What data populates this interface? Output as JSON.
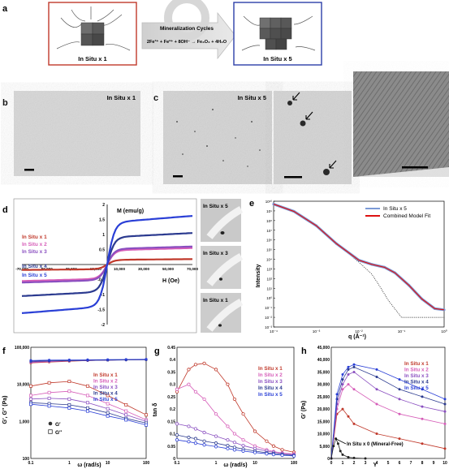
{
  "panels": {
    "a": {
      "letter": "a",
      "left_label": "In Situ x 1",
      "right_label": "In Situ x 5",
      "arrow_title": "Mineralization Cycles",
      "equation": "2Fe³⁺ + Fe²⁺ + 8OH⁻ → Fe₃O₄ + 4H₂O",
      "left_border": "#c0392b",
      "right_border": "#2c3ea8"
    },
    "b": {
      "letter": "b",
      "label": "In Situ x 1"
    },
    "c": {
      "letter": "c",
      "label": "In Situ x 5"
    },
    "d": {
      "letter": "d",
      "ylabel": "M (emu/g)",
      "xlabel": "H (Oe)",
      "insets": [
        "In Situ x 5",
        "In Situ x 3",
        "In Situ x 1"
      ]
    },
    "e": {
      "letter": "e",
      "ylabel": "Intensity",
      "xlabel": "q (Å⁻¹)"
    },
    "f": {
      "letter": "f",
      "ylabel": "G′, G″ (Pa)",
      "xlabel": "ω (rad/s)",
      "legend_g1": "G′",
      "legend_g2": "G″"
    },
    "g": {
      "letter": "g",
      "ylabel": "tan δ",
      "xlabel": "ω (rad/s)"
    },
    "h": {
      "letter": "h",
      "ylabel": "G′ (Pa)",
      "xlabel": "Y",
      "mineral_free": "In Situ x 0 (Mineral-Free)"
    }
  },
  "series_names": [
    "In Situ x 1",
    "In Situ x 2",
    "In Situ x 3",
    "In Situ x 4",
    "In Situ x 5"
  ],
  "series_colors": [
    "#c0392b",
    "#d65db8",
    "#8a4fc0",
    "#2b3a8f",
    "#2a3fd6"
  ],
  "chart_data": [
    {
      "id": "d",
      "type": "line",
      "xlabel": "H (Oe)",
      "ylabel": "M (emu/g)",
      "xlim": [
        -70000,
        70000
      ],
      "ylim": [
        -2,
        2
      ],
      "x_tick_labels": [
        "-70,000",
        "-50,000",
        "-30,000",
        "-10,000",
        "10,000",
        "30,000",
        "50,000",
        "70,000"
      ],
      "y_tick_labels": [
        "-2",
        "-1.5",
        "-1",
        "-0.5",
        "0.5",
        "1",
        "1.5",
        "2"
      ],
      "series": [
        {
          "name": "In Situ x 1",
          "ms": 0.18
        },
        {
          "name": "In Situ x 2",
          "ms": 0.55
        },
        {
          "name": "In Situ x 3",
          "ms": 0.6
        },
        {
          "name": "In Situ x 4",
          "ms": 1.05
        },
        {
          "name": "In Situ x 5",
          "ms": 1.62
        }
      ]
    },
    {
      "id": "e",
      "type": "line",
      "xlabel": "q (Å⁻¹)",
      "ylabel": "Intensity",
      "xscale": "log",
      "yscale": "log",
      "xlim": [
        0.0001,
        1
      ],
      "ylim": [
        0.001,
        10000000000
      ],
      "series": [
        {
          "name": "In Situ x 5",
          "q": [
            0.0001,
            0.0003,
            0.001,
            0.003,
            0.01,
            0.02,
            0.04,
            0.07,
            0.15,
            0.3,
            0.6,
            1
          ],
          "I": [
            5000000000,
            900000000,
            30000000,
            400000,
            8000,
            3000,
            1500,
            400,
            20,
            0.8,
            0.08,
            0.06
          ]
        },
        {
          "name": "Combined Model Fit",
          "q": [
            0.0001,
            0.0003,
            0.001,
            0.003,
            0.01,
            0.02,
            0.04,
            0.07,
            0.15,
            0.3,
            0.6,
            1
          ],
          "I": [
            5000000000,
            900000000,
            30000000,
            400000,
            8000,
            3000,
            1500,
            400,
            20,
            0.8,
            0.08,
            0.06
          ]
        },
        {
          "name": "",
          "q": [
            0.0001,
            0.0003,
            0.001,
            0.003,
            0.01,
            0.02,
            0.03,
            0.05,
            0.1,
            0.3,
            1
          ],
          "I": [
            5000000000,
            900000000,
            30000000,
            400000,
            5000,
            300,
            20,
            0.5,
            0.01,
            0.01,
            0.01
          ]
        }
      ]
    },
    {
      "id": "f",
      "type": "line",
      "xlabel": "ω (rad/s)",
      "ylabel": "G′, G″ (Pa)",
      "xscale": "log",
      "yscale": "log",
      "xlim": [
        0.1,
        100
      ],
      "ylim": [
        100,
        100000
      ],
      "y_tick_labels": [
        "100",
        "1,000",
        "10,000",
        "100,000"
      ],
      "x_tick_labels": [
        "0.1",
        "1",
        "10",
        "100"
      ],
      "x": [
        0.1,
        0.3,
        1,
        3,
        10,
        30,
        100
      ],
      "series": [
        {
          "name": "In Situ x 1",
          "Gp": [
            38000,
            40000,
            42000,
            44000,
            45000,
            46000,
            47000
          ],
          "Gpp": [
            9000,
            11000,
            12000,
            9000,
            5000,
            2800,
            1500
          ]
        },
        {
          "name": "In Situ x 2",
          "Gp": [
            39000,
            41000,
            43000,
            44000,
            45000,
            46000,
            47000
          ],
          "Gpp": [
            5000,
            6000,
            6500,
            5000,
            3000,
            1900,
            1100
          ]
        },
        {
          "name": "In Situ x 3",
          "Gp": [
            40000,
            42000,
            43000,
            44000,
            45000,
            45500,
            46000
          ],
          "Gpp": [
            4000,
            4200,
            4000,
            3200,
            2200,
            1500,
            1000
          ]
        },
        {
          "name": "In Situ x 4",
          "Gp": [
            42000,
            43000,
            44000,
            44500,
            45000,
            45500,
            46000
          ],
          "Gpp": [
            3200,
            3000,
            2800,
            2300,
            1700,
            1200,
            900
          ]
        },
        {
          "name": "In Situ x 5",
          "Gp": [
            44000,
            45000,
            45500,
            46000,
            46500,
            47000,
            47500
          ],
          "Gpp": [
            2900,
            2600,
            2300,
            1900,
            1400,
            1100,
            800
          ]
        }
      ]
    },
    {
      "id": "g",
      "type": "line",
      "xlabel": "ω (rad/s)",
      "ylabel": "tan δ",
      "xscale": "log",
      "xlim": [
        0.1,
        100
      ],
      "ylim": [
        0,
        0.45
      ],
      "y_tick_labels": [
        "0",
        "0.05",
        "0.1",
        "0.15",
        "0.2",
        "0.25",
        "0.3",
        "0.35",
        "0.4",
        "0.45"
      ],
      "x_tick_labels": [
        "0.1",
        "1",
        "10",
        "100"
      ],
      "x": [
        0.1,
        0.2,
        0.3,
        0.5,
        1,
        2,
        3,
        5,
        10,
        20,
        30,
        50,
        100
      ],
      "series": [
        {
          "name": "In Situ x 1",
          "values": [
            0.27,
            0.36,
            0.38,
            0.385,
            0.36,
            0.3,
            0.24,
            0.18,
            0.11,
            0.07,
            0.05,
            0.035,
            0.025
          ]
        },
        {
          "name": "In Situ x 2",
          "values": [
            0.28,
            0.3,
            0.27,
            0.24,
            0.18,
            0.13,
            0.1,
            0.075,
            0.05,
            0.035,
            0.028,
            0.022,
            0.018
          ]
        },
        {
          "name": "In Situ x 3",
          "values": [
            0.14,
            0.13,
            0.12,
            0.105,
            0.09,
            0.075,
            0.065,
            0.052,
            0.04,
            0.03,
            0.025,
            0.02,
            0.015
          ]
        },
        {
          "name": "In Situ x 4",
          "values": [
            0.095,
            0.085,
            0.08,
            0.07,
            0.062,
            0.052,
            0.045,
            0.038,
            0.03,
            0.023,
            0.02,
            0.016,
            0.012
          ]
        },
        {
          "name": "In Situ x 5",
          "values": [
            0.075,
            0.068,
            0.062,
            0.055,
            0.048,
            0.04,
            0.035,
            0.03,
            0.024,
            0.019,
            0.016,
            0.013,
            0.01
          ]
        }
      ]
    },
    {
      "id": "h",
      "type": "line",
      "xlabel": "Y",
      "ylabel": "G′ (Pa)",
      "xlim": [
        0,
        10
      ],
      "ylim": [
        0,
        45000
      ],
      "y_tick_labels": [
        "0",
        "5,000",
        "10,000",
        "15,000",
        "20,000",
        "25,000",
        "30,000",
        "35,000",
        "40,000",
        "45,000"
      ],
      "x_tick_labels": [
        "0",
        "1",
        "2",
        "3",
        "4",
        "5",
        "6",
        "7",
        "8",
        "9",
        "10"
      ],
      "series": [
        {
          "name": "In Situ x 1",
          "x": [
            0,
            0.5,
            1,
            1.5,
            2,
            4,
            6,
            8,
            10
          ],
          "values": [
            0,
            18000,
            20000,
            17000,
            14000,
            10000,
            8000,
            6000,
            4000
          ]
        },
        {
          "name": "In Situ x 2",
          "x": [
            0,
            0.5,
            1,
            1.5,
            2,
            4,
            6,
            8,
            10
          ],
          "values": [
            0,
            20000,
            28000,
            30000,
            28000,
            22000,
            18000,
            16000,
            14000
          ]
        },
        {
          "name": "In Situ x 3",
          "x": [
            0,
            0.5,
            1,
            1.5,
            2,
            4,
            6,
            8,
            10
          ],
          "values": [
            0,
            22000,
            30000,
            34000,
            35000,
            28000,
            24000,
            21000,
            19000
          ]
        },
        {
          "name": "In Situ x 4",
          "x": [
            0,
            0.5,
            1,
            1.5,
            2,
            4,
            6,
            8,
            10
          ],
          "values": [
            0,
            24000,
            32000,
            36000,
            37000,
            33000,
            28000,
            25000,
            22000
          ]
        },
        {
          "name": "In Situ x 5",
          "x": [
            0,
            0.5,
            1,
            1.5,
            2,
            4,
            6,
            8,
            10
          ],
          "values": [
            0,
            26000,
            34000,
            37000,
            38000,
            36000,
            32000,
            28000,
            24000
          ]
        },
        {
          "name": "In Situ x 0 (Mineral-Free)",
          "x": [
            0,
            0.2,
            0.4,
            0.6,
            0.8,
            1,
            1.5,
            2,
            3
          ],
          "values": [
            0,
            5000,
            8000,
            6000,
            3000,
            1500,
            500,
            200,
            0
          ]
        }
      ]
    }
  ]
}
